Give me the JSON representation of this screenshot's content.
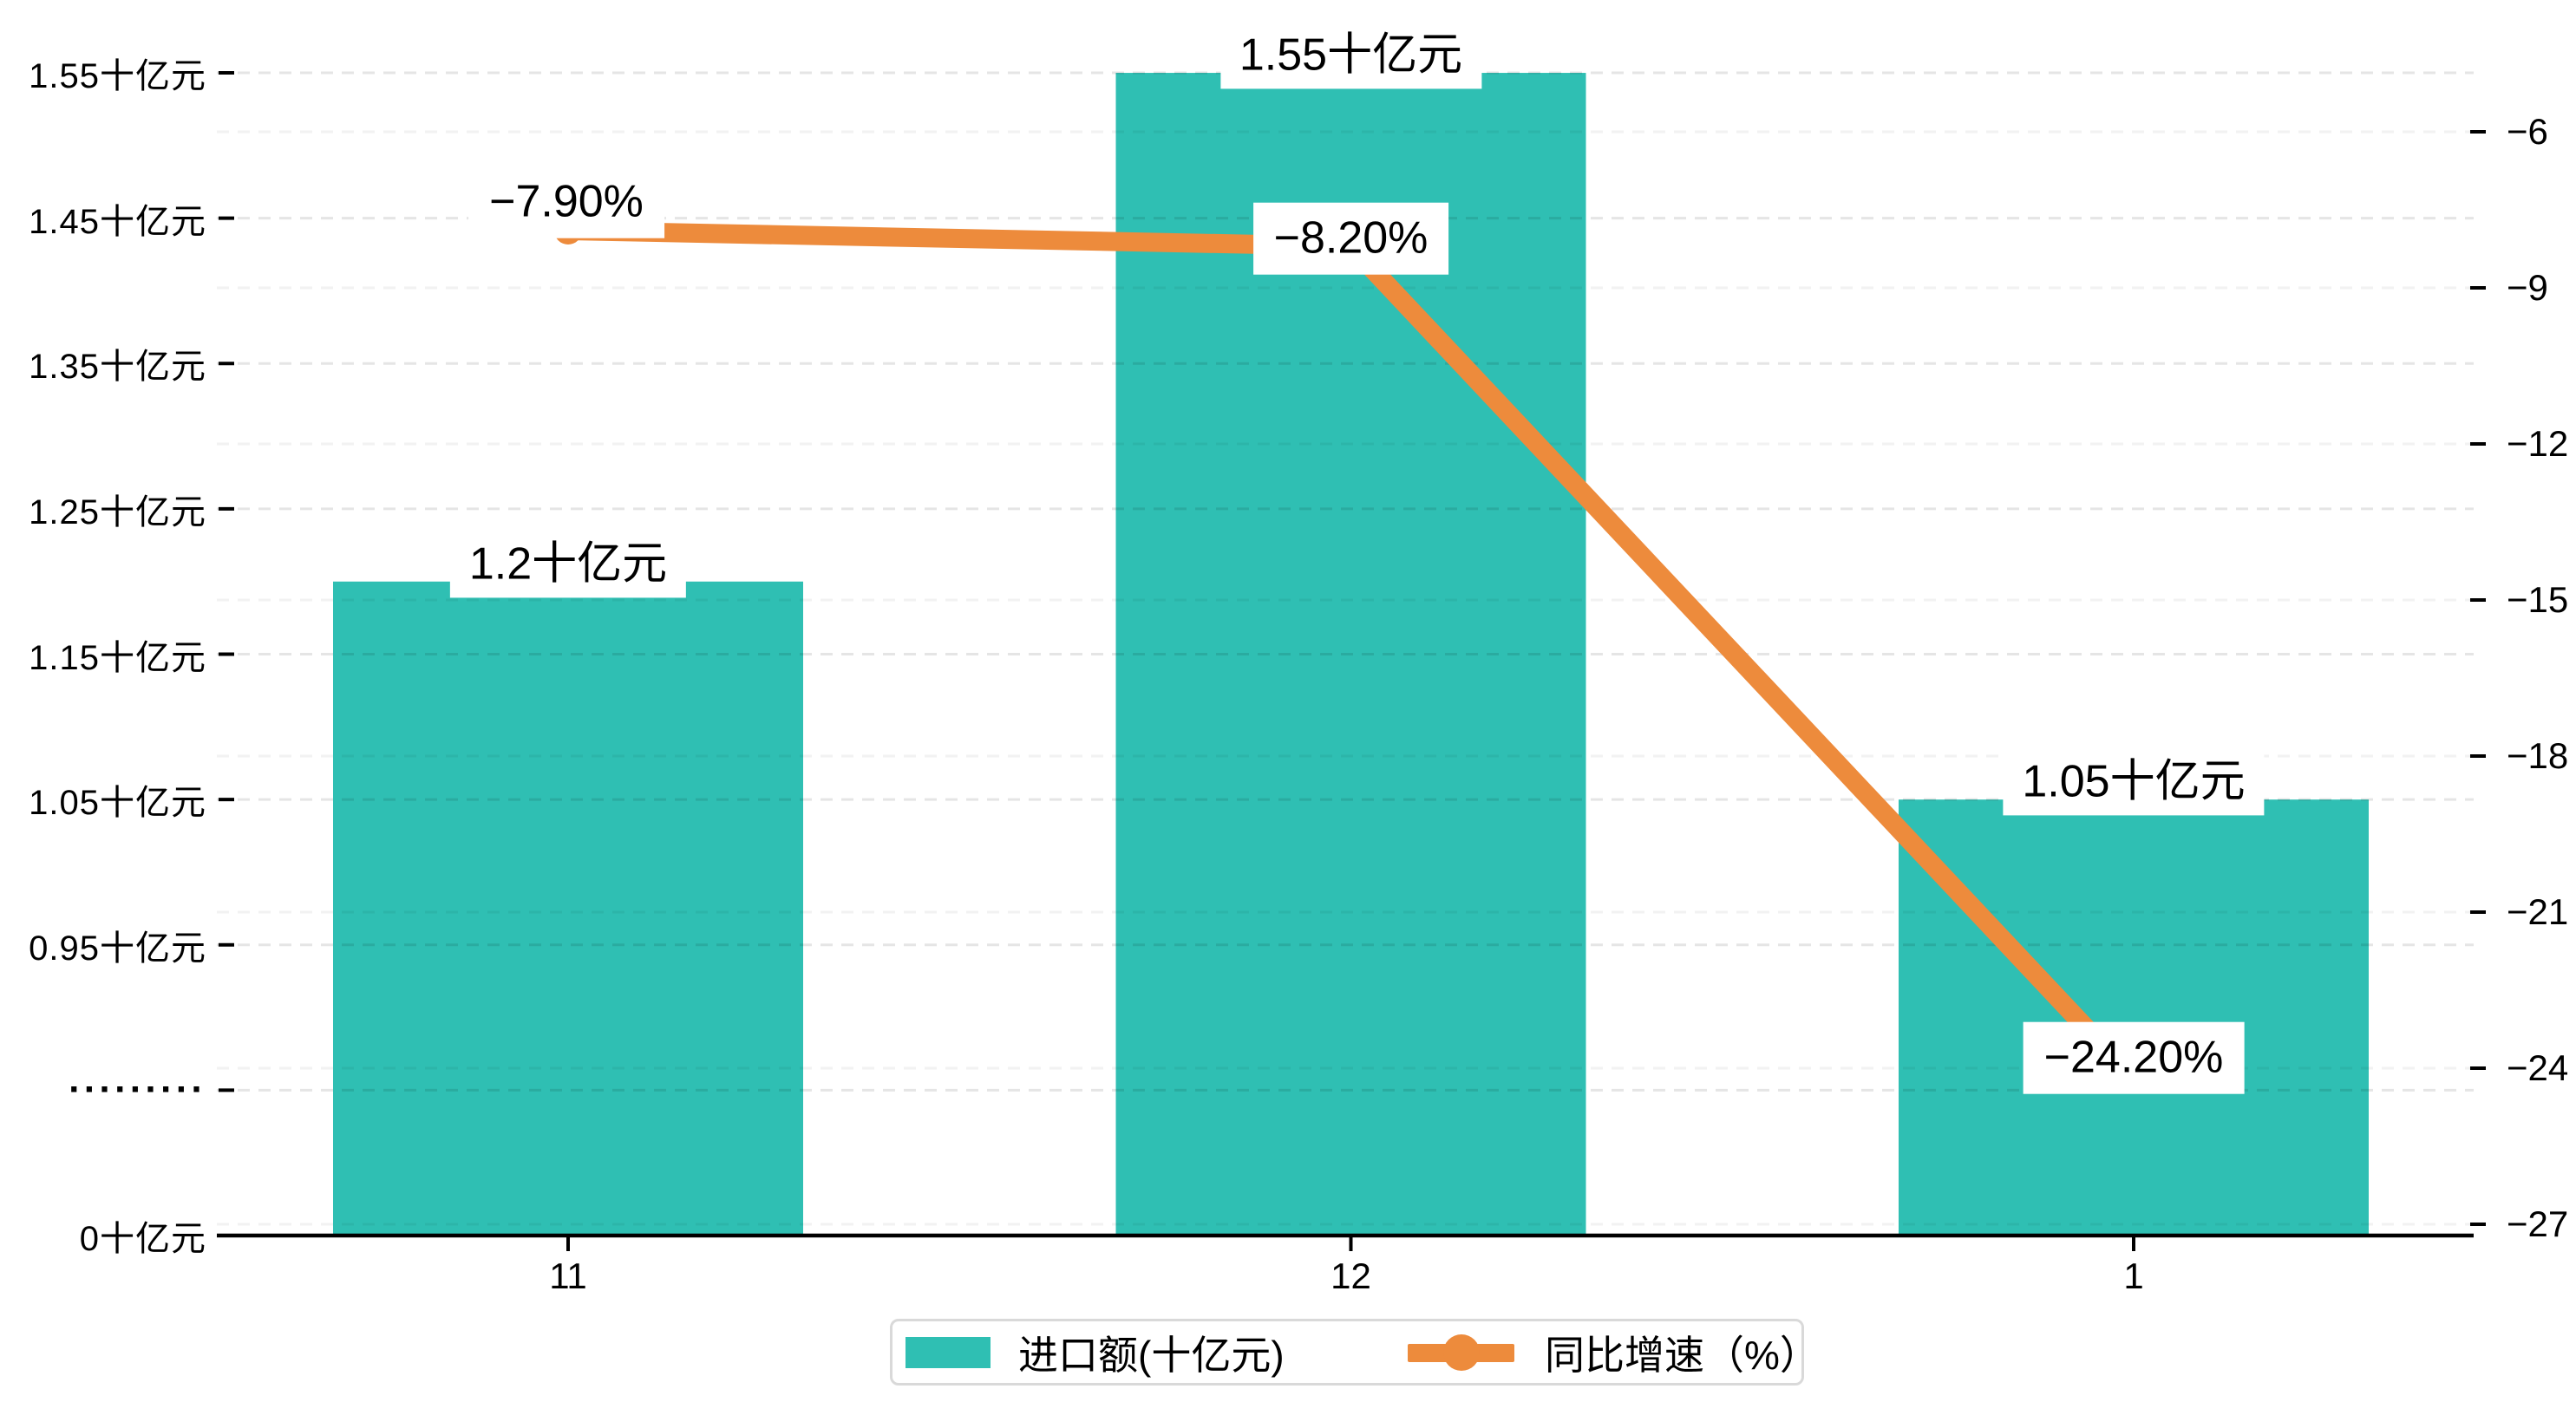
{
  "chart_data": {
    "type": "combo-bar-line",
    "categories": [
      "11",
      "12",
      "1"
    ],
    "series": [
      {
        "name": "进口额(十亿元)",
        "type": "bar",
        "values": [
          1.2,
          1.55,
          1.05
        ],
        "labels": [
          "1.2十亿元",
          "1.55十亿元",
          "1.05十亿元"
        ],
        "color": "#2fbfb3"
      },
      {
        "name": "同比增速（%）",
        "type": "line",
        "values": [
          -7.9,
          -8.2,
          -24.2
        ],
        "labels": [
          "−7.90%",
          "−8.20%",
          "−24.20%"
        ],
        "color": "#ed8b3c"
      }
    ],
    "left_axis": {
      "unit": "十亿元",
      "broken_axis": true,
      "tick_labels": [
        "1.55十亿元",
        "1.45十亿元",
        "1.35十亿元",
        "1.25十亿元",
        "1.15十亿元",
        "1.05十亿元",
        "0.95十亿元",
        "·········",
        "0十亿元"
      ],
      "tick_values": [
        1.55,
        1.45,
        1.35,
        1.25,
        1.15,
        1.05,
        0.95,
        null,
        0
      ]
    },
    "right_axis": {
      "tick_labels": [
        "−6",
        "−9",
        "−12",
        "−15",
        "−18",
        "−21",
        "−24",
        "−27"
      ],
      "tick_values": [
        -6,
        -9,
        -12,
        -15,
        -18,
        -21,
        -24,
        -27
      ],
      "range": [
        -27.7,
        -5.9
      ]
    },
    "grid": "dashed-horizontal",
    "legend_position": "bottom-center",
    "title": "",
    "colors": {
      "bar": "#2fbfb3",
      "line": "#ed8b3c",
      "axis": "#000000",
      "grid_left": "rgba(0,0,0,0.10)",
      "grid_right": "rgba(0,0,0,0.05)",
      "background": "#ffffff"
    }
  },
  "legend": {
    "items": [
      {
        "label": "进口额(十亿元)",
        "marker": "bar-swatch"
      },
      {
        "label": "同比增速（%）",
        "marker": "line-with-dot"
      }
    ]
  }
}
